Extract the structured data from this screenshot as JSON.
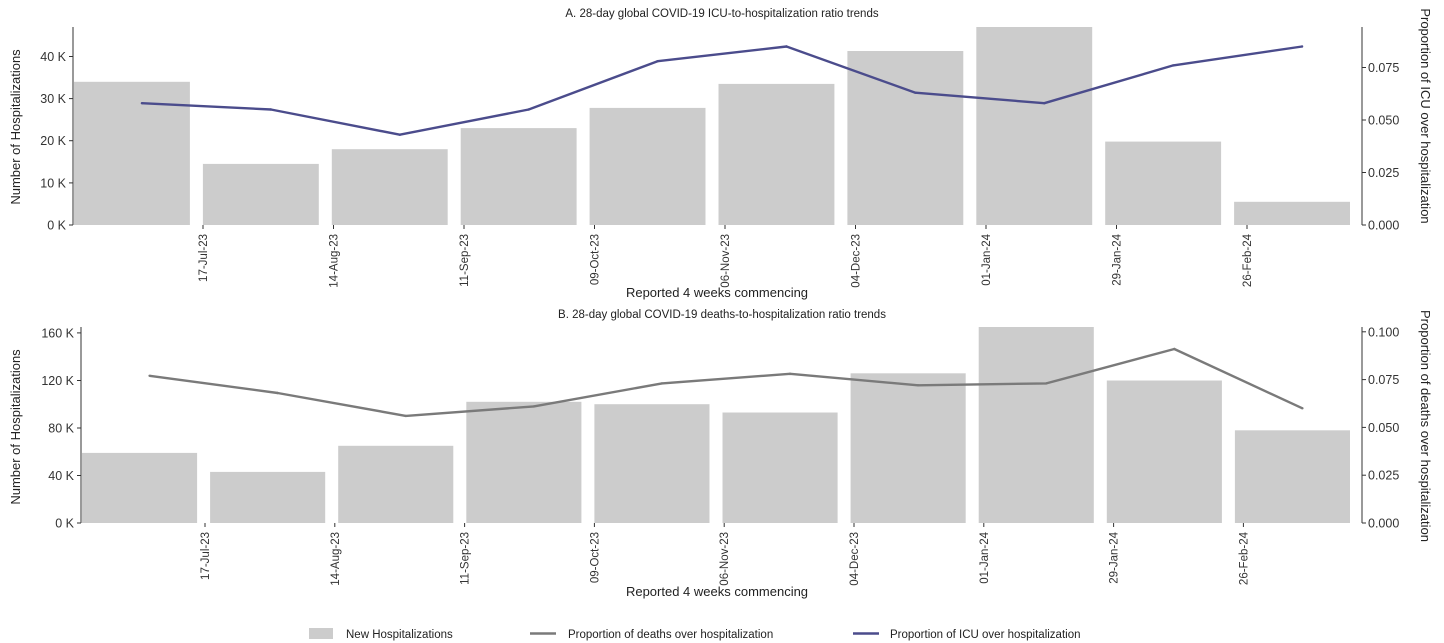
{
  "chart_data": [
    {
      "type": "bar",
      "title": "A. 28-day global COVID-19 ICU-to-hospitalization ratio trends",
      "xlabel": "Reported 4 weeks commencing",
      "ylabel": "Number of Hospitalizations",
      "ylabel_right": "Proportion of ICU over hospitalization",
      "x_ticks": [
        "17-Jul-23",
        "14-Aug-23",
        "11-Sep-23",
        "09-Oct-23",
        "06-Nov-23",
        "04-Dec-23",
        "01-Jan-24",
        "29-Jan-24",
        "26-Feb-24"
      ],
      "y_ticks": [
        "0 K",
        "10 K",
        "20 K",
        "30 K",
        "40 K"
      ],
      "y2_ticks": [
        "0.000",
        "0.025",
        "0.050",
        "0.075"
      ],
      "ylim": [
        0,
        47000
      ],
      "y2lim": [
        0,
        0.0943
      ],
      "bar_series": {
        "name": "New Hospitalizations",
        "color": "#cccccc",
        "values": [
          34000,
          14500,
          18000,
          23000,
          27800,
          33500,
          41300,
          47500,
          19800,
          5500
        ]
      },
      "line_series": {
        "name": "Proportion of ICU over hospitalization",
        "color": "#4b4c8c",
        "values": [
          0.058,
          0.055,
          0.043,
          0.055,
          0.078,
          0.085,
          0.063,
          0.058,
          0.076,
          0.085
        ]
      },
      "grid": false
    },
    {
      "type": "bar",
      "title": "B. 28-day global COVID-19 deaths-to-hospitalization ratio trends",
      "xlabel": "Reported 4 weeks commencing",
      "ylabel": "Number of Hospitalizations",
      "ylabel_right": "Proportion of deaths over hospitalization",
      "x_ticks": [
        "17-Jul-23",
        "14-Aug-23",
        "11-Sep-23",
        "09-Oct-23",
        "06-Nov-23",
        "04-Dec-23",
        "01-Jan-24",
        "29-Jan-24",
        "26-Feb-24"
      ],
      "y_ticks": [
        "0 K",
        "40 K",
        "80 K",
        "120 K",
        "160 K"
      ],
      "y2_ticks": [
        "0.000",
        "0.025",
        "0.050",
        "0.075",
        "0.100"
      ],
      "ylim": [
        0,
        165000
      ],
      "y2lim": [
        0,
        0.1025
      ],
      "bar_series": {
        "name": "New Hospitalizations",
        "color": "#cccccc",
        "values": [
          59000,
          43000,
          65000,
          102000,
          100000,
          93000,
          126000,
          165000,
          120000,
          78000
        ]
      },
      "line_series": {
        "name": "Proportion of deaths over hospitalization",
        "color": "#7a7a7a",
        "values": [
          0.077,
          0.068,
          0.056,
          0.061,
          0.073,
          0.078,
          0.072,
          0.073,
          0.091,
          0.06
        ]
      },
      "grid": false
    }
  ],
  "legend": {
    "bars_label": "New Hospitalizations",
    "deaths_label": "Proportion of deaths over hospitalization",
    "icu_label": "Proportion of ICU over hospitalization",
    "bars_color": "#cccccc",
    "deaths_color": "#7a7a7a",
    "icu_color": "#4b4c8c",
    "placement": "bottom-center"
  }
}
